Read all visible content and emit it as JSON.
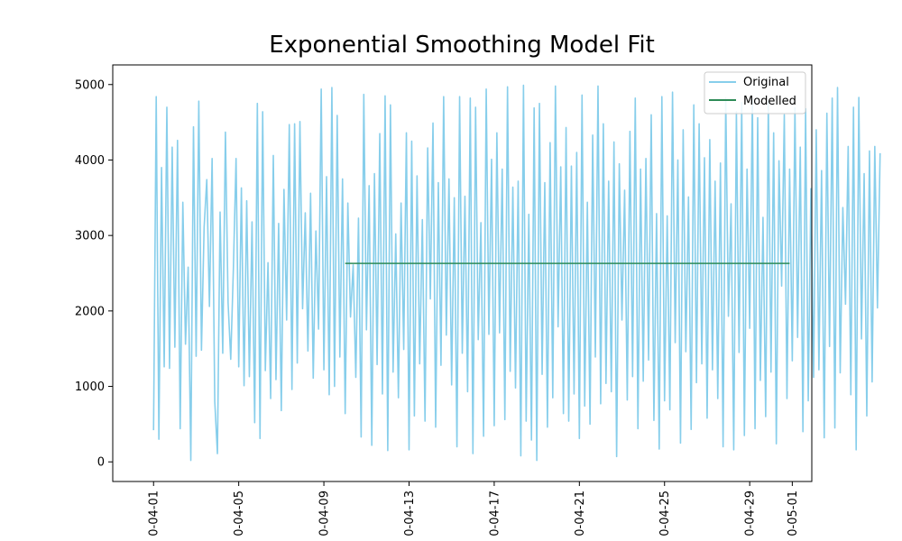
{
  "chart_data": {
    "type": "line",
    "title": "Exponential Smoothing Model Fit",
    "xlabel": "",
    "ylabel": "",
    "x_range": [
      "2023-03-30T02:00",
      "2023-05-01T22:00"
    ],
    "ylim": [
      -260,
      5260
    ],
    "y_ticks": [
      0,
      1000,
      2000,
      3000,
      4000,
      5000
    ],
    "x_ticks": [
      {
        "date": "2023-04-01",
        "label": "0-04-01"
      },
      {
        "date": "2023-04-05",
        "label": "0-04-05"
      },
      {
        "date": "2023-04-09",
        "label": "0-04-09"
      },
      {
        "date": "2023-04-13",
        "label": "0-04-13"
      },
      {
        "date": "2023-04-17",
        "label": "0-04-17"
      },
      {
        "date": "2023-04-21",
        "label": "0-04-21"
      },
      {
        "date": "2023-04-25",
        "label": "0-04-25"
      },
      {
        "date": "2023-04-29",
        "label": "0-04-29"
      },
      {
        "date": "2023-05-01",
        "label": "0-05-01"
      }
    ],
    "grid": false,
    "legend_position": "top-right",
    "series": [
      {
        "name": "Original",
        "color": "#87ceeb",
        "x_start": "2023-04-01T00:00",
        "step_hours": 3,
        "values": [
          420,
          4840,
          300,
          3900,
          1260,
          4700,
          1240,
          4170,
          1520,
          4260,
          440,
          3440,
          1560,
          2580,
          20,
          4440,
          1400,
          4780,
          1480,
          3110,
          3740,
          2060,
          4020,
          800,
          110,
          3310,
          1440,
          4370,
          2110,
          1360,
          2570,
          4020,
          1260,
          3630,
          1010,
          3460,
          1130,
          3180,
          520,
          4750,
          310,
          4640,
          1210,
          2640,
          840,
          4060,
          1090,
          3160,
          680,
          3610,
          1880,
          4470,
          960,
          4480,
          1310,
          4510,
          2030,
          3300,
          1470,
          3560,
          1110,
          3060,
          1760,
          4940,
          1220,
          3780,
          890,
          4960,
          1000,
          4590,
          1390,
          3750,
          640,
          3430,
          1920,
          2610,
          1120,
          3230,
          330,
          4870,
          1750,
          3660,
          220,
          3820,
          1290,
          4350,
          900,
          4850,
          150,
          4730,
          1190,
          3020,
          850,
          3430,
          1490,
          4360,
          160,
          4250,
          610,
          3790,
          1300,
          3210,
          540,
          4160,
          2160,
          4490,
          460,
          3700,
          1280,
          4840,
          1680,
          3750,
          1020,
          3500,
          200,
          4840,
          1440,
          3520,
          930,
          4820,
          110,
          4700,
          1620,
          3170,
          340,
          4940,
          1690,
          4010,
          480,
          4360,
          1710,
          3880,
          560,
          4970,
          1200,
          3640,
          980,
          3720,
          80,
          4990,
          540,
          3280,
          290,
          4690,
          20,
          4750,
          1160,
          3700,
          460,
          4230,
          850,
          4980,
          1790,
          3910,
          640,
          4430,
          540,
          3920,
          900,
          4100,
          310,
          4860,
          740,
          3440,
          500,
          4330,
          1390,
          4980,
          770,
          4480,
          1040,
          3720,
          930,
          4240,
          70,
          3950,
          1880,
          3600,
          820,
          4380,
          1130,
          4820,
          440,
          3880,
          1070,
          4020,
          1350,
          4600,
          550,
          3290,
          170,
          4840,
          810,
          3260,
          690,
          4900,
          1580,
          4000,
          250,
          4400,
          1460,
          3510,
          430,
          4730,
          1050,
          4480,
          1300,
          4030,
          580,
          4270,
          1220,
          3720,
          840,
          3960,
          200,
          4820,
          1930,
          3420,
          160,
          4640,
          1450,
          4760,
          350,
          3880,
          1770,
          4810,
          440,
          4560,
          1080,
          3240,
          600,
          4780,
          1190,
          4360,
          240,
          3990,
          2330,
          4600,
          840,
          3880,
          1340,
          4690,
          1650,
          4170,
          400,
          4680,
          810,
          3620,
          1120,
          4400,
          1220,
          3860,
          320,
          4620,
          1530,
          4820,
          450,
          4960,
          1180,
          3370,
          2090,
          4180,
          890,
          4700,
          160,
          4830,
          1630,
          3820,
          610,
          4120,
          1060,
          4180,
          2040,
          4090
        ]
      },
      {
        "name": "Modelled",
        "color": "#2e8b57",
        "x_start": "2023-04-10T00:00",
        "x_end": "2023-04-30T21:00",
        "level": 2630
      }
    ]
  }
}
